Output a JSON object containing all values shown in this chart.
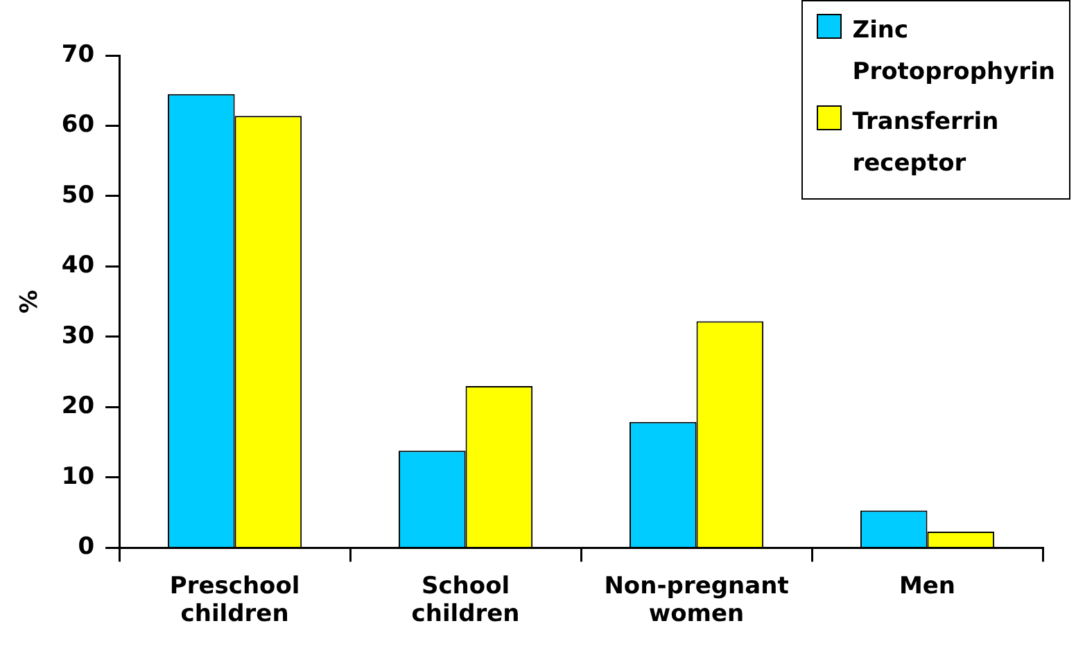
{
  "chart_data": {
    "type": "bar",
    "ylabel": "%",
    "categories": [
      "Preschool children",
      "School children",
      "Non-pregnant women",
      "Men"
    ],
    "series": [
      {
        "name": "Zinc Protoprophyrin",
        "color": "#00ccff",
        "values": [
          64.5,
          13.8,
          17.9,
          5.3
        ]
      },
      {
        "name": "Transferrin receptor",
        "color": "#ffff00",
        "values": [
          61.4,
          23.0,
          32.2,
          2.3
        ]
      }
    ],
    "ylim": [
      0,
      70
    ],
    "yticks": [
      0,
      10,
      20,
      30,
      40,
      50,
      60,
      70
    ],
    "grid": false,
    "legend": "top right"
  }
}
